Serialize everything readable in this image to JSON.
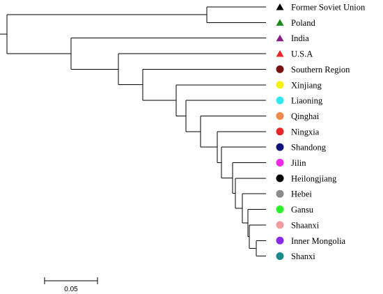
{
  "tree": {
    "leaves": [
      {
        "label": "Former Soviet Union",
        "marker": "triangle",
        "color": "#000000"
      },
      {
        "label": "Poland",
        "marker": "triangle",
        "color": "#1a8a1a"
      },
      {
        "label": "India",
        "marker": "triangle",
        "color": "#8b1a8b"
      },
      {
        "label": "U.S.A",
        "marker": "triangle",
        "color": "#e8262a"
      },
      {
        "label": "Southern Region",
        "marker": "circle",
        "color": "#7b1212"
      },
      {
        "label": "Xinjiang",
        "marker": "circle",
        "color": "#f5f20a"
      },
      {
        "label": "Liaoning",
        "marker": "circle",
        "color": "#2fe8f0"
      },
      {
        "label": "Qinghai",
        "marker": "circle",
        "color": "#f08a4a"
      },
      {
        "label": "Ningxia",
        "marker": "circle",
        "color": "#e8262a"
      },
      {
        "label": "Shandong",
        "marker": "circle",
        "color": "#12127a"
      },
      {
        "label": "Jilin",
        "marker": "circle",
        "color": "#f02ae8"
      },
      {
        "label": "Heilongjiang",
        "marker": "circle",
        "color": "#000000"
      },
      {
        "label": "Hebei",
        "marker": "circle",
        "color": "#8a8a8a"
      },
      {
        "label": "Gansu",
        "marker": "circle",
        "color": "#2af02a"
      },
      {
        "label": "Shaanxi",
        "marker": "circle",
        "color": "#f49a9a"
      },
      {
        "label": "Inner Mongolia",
        "marker": "circle",
        "color": "#8a2ae8"
      },
      {
        "label": "Shanxi",
        "marker": "circle",
        "color": "#1a8a8a"
      }
    ]
  },
  "scale_bar": {
    "label": "0.05"
  }
}
